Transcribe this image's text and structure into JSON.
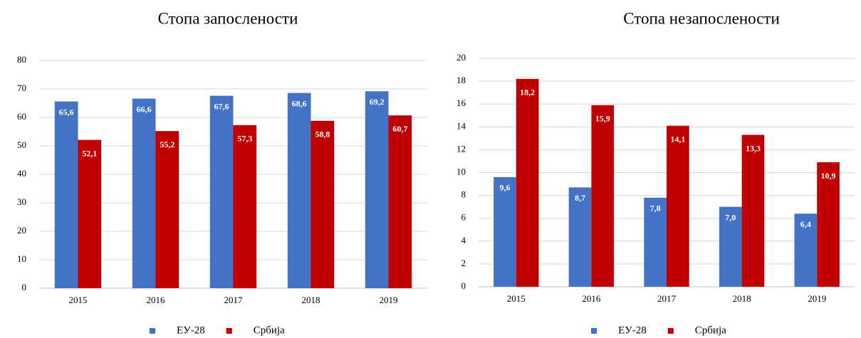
{
  "chart_data": [
    {
      "type": "bar",
      "title": "Стопа запослености",
      "categories": [
        "2015",
        "2016",
        "2017",
        "2018",
        "2019"
      ],
      "series": [
        {
          "name": "ЕУ-28",
          "color": "#4472c4",
          "values": [
            65.6,
            66.6,
            67.6,
            68.6,
            69.2
          ],
          "value_labels": [
            "65,6",
            "66,6",
            "67,6",
            "68,6",
            "69,2"
          ]
        },
        {
          "name": "Србија",
          "color": "#c00000",
          "values": [
            52.1,
            55.2,
            57.3,
            58.8,
            60.7
          ],
          "value_labels": [
            "52,1",
            "55,2",
            "57,3",
            "58,8",
            "60,7"
          ]
        }
      ],
      "ylim": [
        0,
        80
      ],
      "yticks": [
        0,
        10,
        20,
        30,
        40,
        50,
        60,
        70,
        80
      ],
      "grid": true,
      "legend": "bottom"
    },
    {
      "type": "bar",
      "title": "Стопа незапослености",
      "categories": [
        "2015",
        "2016",
        "2017",
        "2018",
        "2019"
      ],
      "series": [
        {
          "name": "ЕУ-28",
          "color": "#4472c4",
          "values": [
            9.6,
            8.7,
            7.8,
            7.0,
            6.4
          ],
          "value_labels": [
            "9,6",
            "8,7",
            "7,8",
            "7,0",
            "6,4"
          ]
        },
        {
          "name": "Србија",
          "color": "#c00000",
          "values": [
            18.2,
            15.9,
            14.1,
            13.3,
            10.9
          ],
          "value_labels": [
            "18,2",
            "15,9",
            "14,1",
            "13,3",
            "10,9"
          ]
        }
      ],
      "ylim": [
        0,
        20
      ],
      "yticks": [
        0,
        2,
        4,
        6,
        8,
        10,
        12,
        14,
        16,
        18,
        20
      ],
      "grid": true,
      "legend": "bottom"
    }
  ]
}
